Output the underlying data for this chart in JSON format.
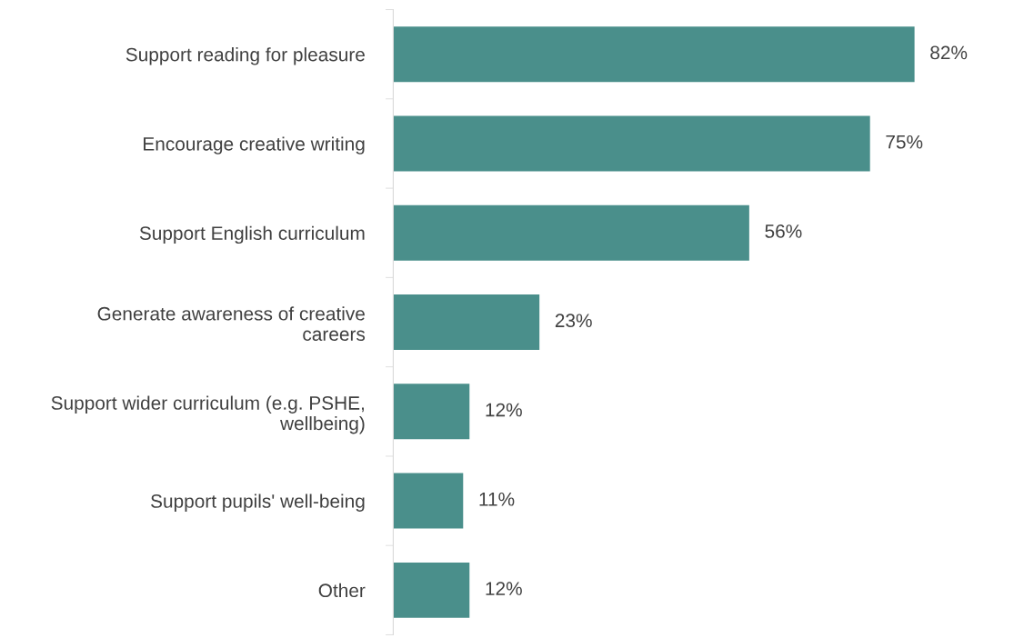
{
  "chart_data": {
    "type": "bar",
    "orientation": "horizontal",
    "categories": [
      "Support reading for pleasure",
      "Encourage creative writing",
      "Support English curriculum",
      "Generate awareness of creative careers",
      "Support wider curriculum (e.g. PSHE, wellbeing)",
      "Support pupils' well-being",
      "Other"
    ],
    "values": [
      82,
      75,
      56,
      23,
      12,
      11,
      12
    ],
    "value_labels": [
      "82%",
      "75%",
      "56%",
      "23%",
      "12%",
      "11%",
      "12%"
    ],
    "color": "#4a8f8b",
    "tick_labels": "y",
    "grid": false,
    "legend": false
  }
}
